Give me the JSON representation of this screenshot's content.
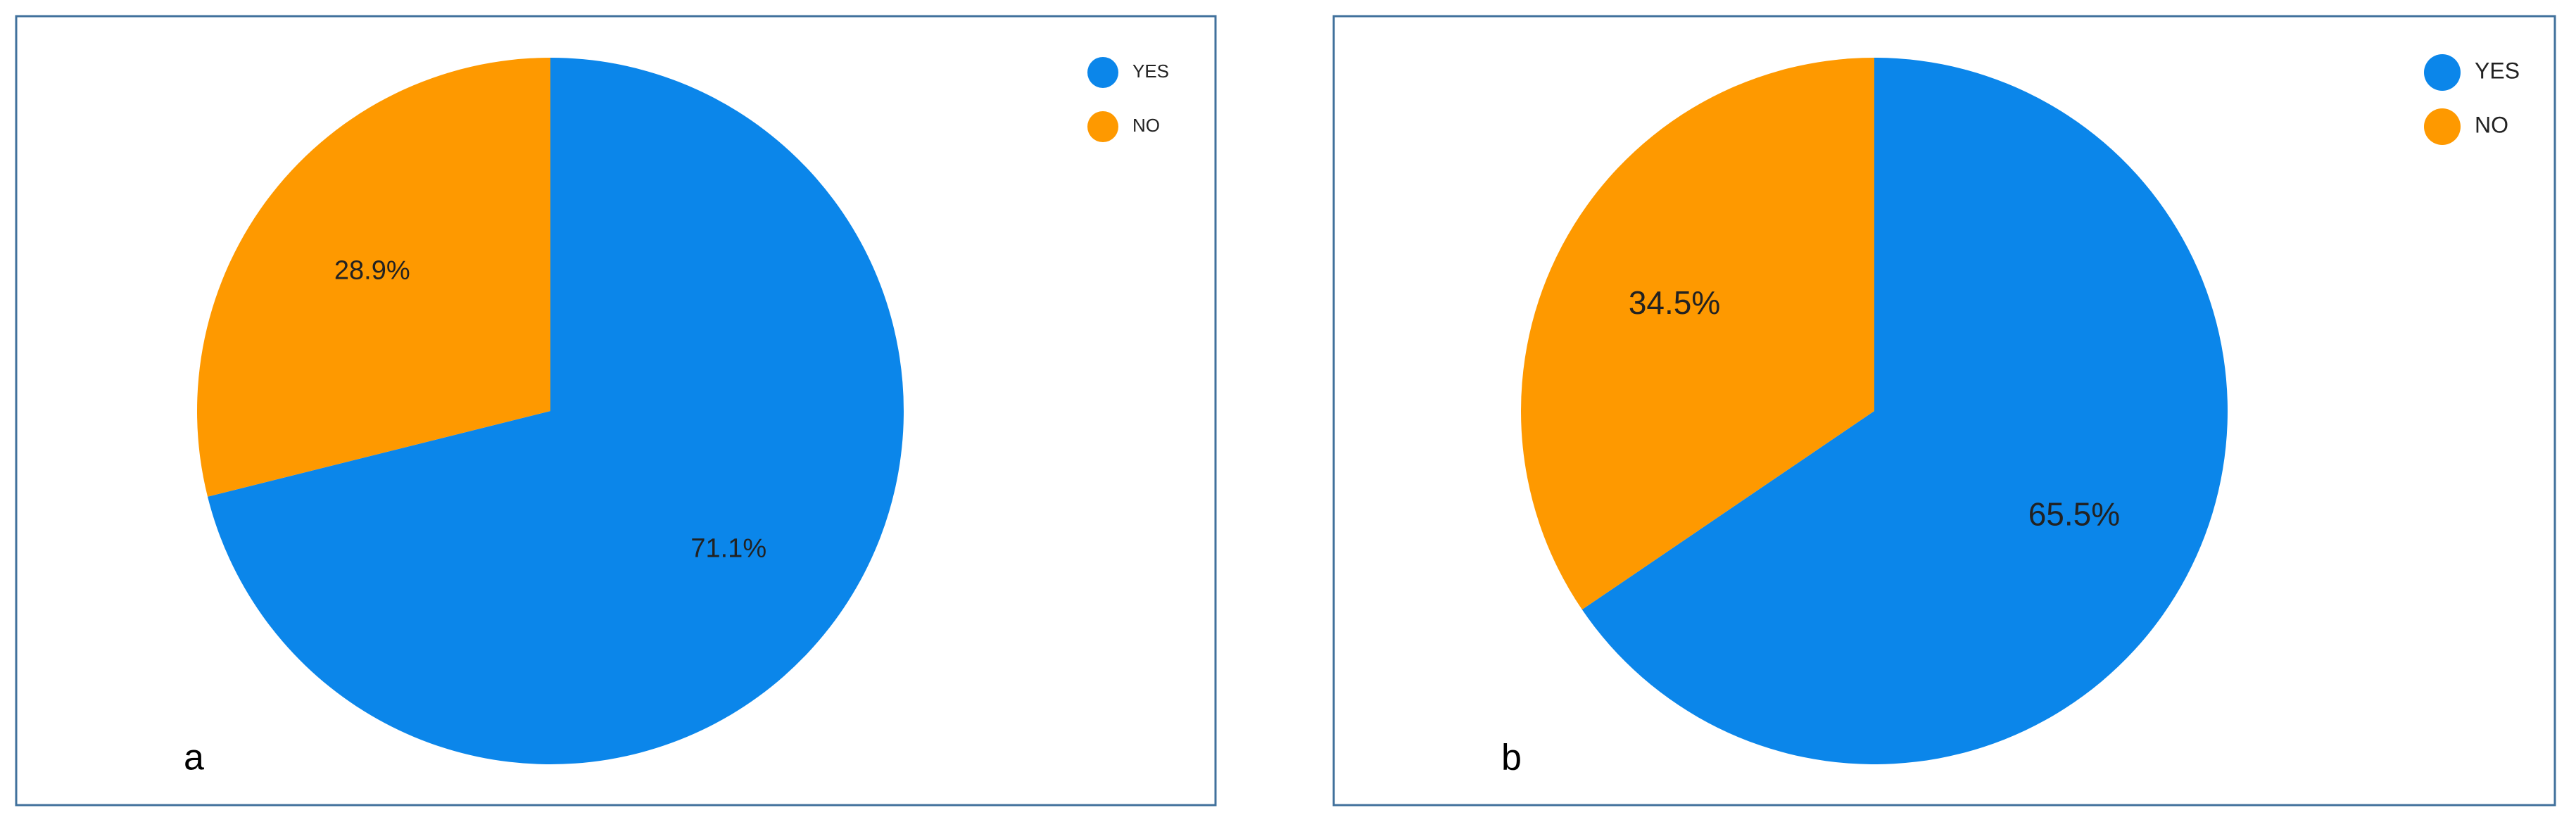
{
  "chart_data": [
    {
      "type": "pie",
      "panel_label": "a",
      "categories": [
        "YES",
        "NO"
      ],
      "values": [
        71.1,
        28.9
      ],
      "value_labels": [
        "71.1%",
        "28.9%"
      ],
      "colors": [
        "#0b86ea",
        "#fe9900"
      ],
      "legend": "top-right"
    },
    {
      "type": "pie",
      "panel_label": "b",
      "categories": [
        "YES",
        "NO"
      ],
      "values": [
        65.5,
        34.5
      ],
      "value_labels": [
        "65.5%",
        "34.5%"
      ],
      "colors": [
        "#0b86ea",
        "#fe9900"
      ],
      "legend": "top-right"
    }
  ]
}
